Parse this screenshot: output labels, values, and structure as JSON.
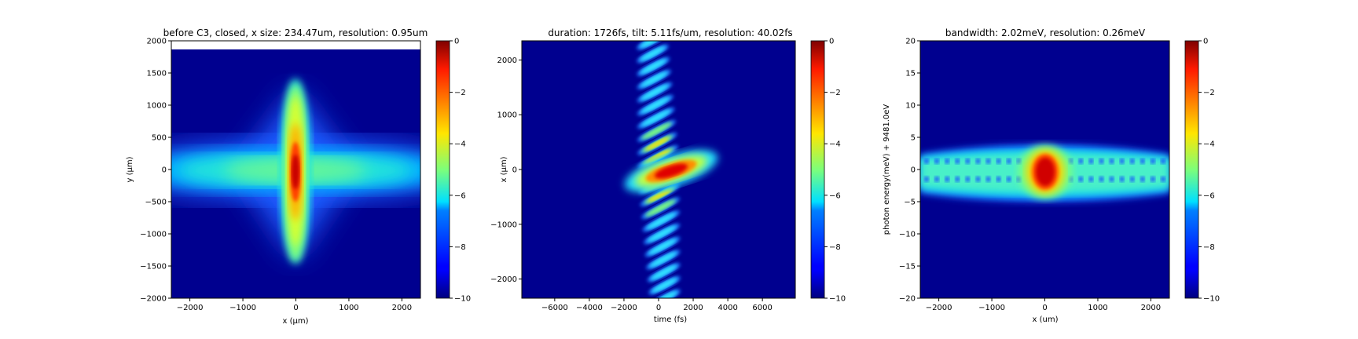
{
  "chart_data": [
    {
      "type": "heatmap",
      "title": "before C3, closed, x size: 234.47um, resolution: 0.95um",
      "xlabel": "x (μm)",
      "ylabel": "y (μm)",
      "xlim": [
        -2350,
        2350
      ],
      "ylim": [
        -2000,
        2000
      ],
      "xticks": [
        -2000,
        -1000,
        0,
        1000,
        2000
      ],
      "yticks": [
        -2000,
        -1500,
        -1000,
        -500,
        0,
        500,
        1000,
        1500,
        2000
      ],
      "xtick_labels": [
        "−2000",
        "−1000",
        "0",
        "1000",
        "2000"
      ],
      "ytick_labels": [
        "−2000",
        "−1500",
        "−1000",
        "−500",
        "0",
        "500",
        "1000",
        "1500",
        "2000"
      ],
      "data_ylim": [
        -2000,
        1870
      ],
      "colormap": "jet",
      "colorbar": {
        "range": [
          -10,
          0
        ],
        "ticks": [
          0,
          -2,
          -4,
          -6,
          -8,
          -10
        ],
        "tick_labels": [
          "0",
          "−2",
          "−4",
          "−6",
          "−8",
          "−10"
        ]
      },
      "features": {
        "shape": "cross",
        "peak": {
          "x": 0,
          "y": 0,
          "value": 0
        },
        "vertical_arm_y_range": [
          -1780,
          1230
        ],
        "horizontal_arm_x_range": [
          -2350,
          2350
        ]
      }
    },
    {
      "type": "heatmap",
      "title": "duration: 1726fs, tilt: 5.11fs/um, resolution: 40.02fs",
      "xlabel": "time (fs)",
      "ylabel": "x (μm)",
      "xlim": [
        -7900,
        7900
      ],
      "ylim": [
        -2350,
        2350
      ],
      "xticks": [
        -6000,
        -4000,
        -2000,
        0,
        2000,
        4000,
        6000
      ],
      "yticks": [
        -2000,
        -1000,
        0,
        1000,
        2000
      ],
      "xtick_labels": [
        "−6000",
        "−4000",
        "−2000",
        "0",
        "2000",
        "4000",
        "6000"
      ],
      "ytick_labels": [
        "−2000",
        "−1000",
        "0",
        "1000",
        "2000"
      ],
      "colormap": "jet",
      "colorbar": {
        "range": [
          -10,
          0
        ],
        "ticks": [
          0,
          -2,
          -4,
          -6,
          -8,
          -10
        ],
        "tick_labels": [
          "0",
          "−2",
          "−4",
          "−6",
          "−8",
          "−10"
        ]
      },
      "features": {
        "shape": "tilted fringe pattern",
        "peak": {
          "x": 0,
          "y": 0,
          "value": 0
        },
        "fringe_count": 21,
        "fringe_x_range": [
          -2350,
          2350
        ],
        "tilt_fs_per_um": 5.11
      }
    },
    {
      "type": "heatmap",
      "title": "bandwidth: 2.02meV, resolution: 0.26meV",
      "xlabel": "x (um)",
      "ylabel": "photon energy(meV) + 9481.0eV",
      "xlim": [
        -2350,
        2350
      ],
      "ylim": [
        -20,
        20
      ],
      "xticks": [
        -2000,
        -1000,
        0,
        1000,
        2000
      ],
      "yticks": [
        -20,
        -15,
        -10,
        -5,
        0,
        5,
        10,
        15,
        20
      ],
      "xtick_labels": [
        "−2000",
        "−1000",
        "0",
        "1000",
        "2000"
      ],
      "ytick_labels": [
        "−20",
        "−15",
        "−10",
        "−5",
        "0",
        "5",
        "10",
        "15",
        "20"
      ],
      "colormap": "jet",
      "colorbar": {
        "range": [
          -10,
          0
        ],
        "ticks": [
          0,
          -2,
          -4,
          -6,
          -8,
          -10
        ],
        "tick_labels": [
          "0",
          "−2",
          "−4",
          "−6",
          "−8",
          "−10"
        ]
      },
      "features": {
        "shape": "horizontal band",
        "peak": {
          "x": 0,
          "y": 0,
          "value": 0
        },
        "band_y_range": [
          -4.5,
          4.5
        ],
        "hole_rows_y": [
          1.3,
          -1.5
        ],
        "hole_count_per_row": 24
      }
    }
  ]
}
